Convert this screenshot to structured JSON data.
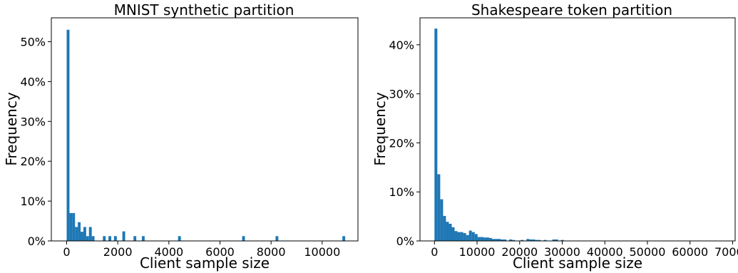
{
  "colors": {
    "bar": "#1f77b4",
    "axes": "#000000",
    "background": "#ffffff"
  },
  "chart_data": [
    {
      "type": "bar",
      "title": "MNIST synthetic partition",
      "xlabel": "Client sample size",
      "ylabel": "Frequency",
      "xlim": [
        -600,
        11400
      ],
      "ylim": [
        0,
        0.56
      ],
      "xticks": [
        0,
        2000,
        4000,
        6000,
        8000,
        10000
      ],
      "xtick_labels": [
        "0",
        "2000",
        "4000",
        "6000",
        "8000",
        "10000"
      ],
      "yticks": [
        0,
        0.1,
        0.2,
        0.3,
        0.4,
        0.5
      ],
      "ytick_labels": [
        "0%",
        "10%",
        "20%",
        "30%",
        "40%",
        "50%"
      ],
      "bin_width": 109,
      "bins": [
        {
          "x": 0,
          "y": 0.53
        },
        {
          "x": 109,
          "y": 0.07
        },
        {
          "x": 218,
          "y": 0.07
        },
        {
          "x": 327,
          "y": 0.035
        },
        {
          "x": 436,
          "y": 0.047
        },
        {
          "x": 545,
          "y": 0.023
        },
        {
          "x": 654,
          "y": 0.035
        },
        {
          "x": 763,
          "y": 0.012
        },
        {
          "x": 872,
          "y": 0.035
        },
        {
          "x": 981,
          "y": 0.012
        },
        {
          "x": 1417,
          "y": 0.012
        },
        {
          "x": 1635,
          "y": 0.012
        },
        {
          "x": 1853,
          "y": 0.012
        },
        {
          "x": 2180,
          "y": 0.024
        },
        {
          "x": 2616,
          "y": 0.012
        },
        {
          "x": 2943,
          "y": 0.012
        },
        {
          "x": 4360,
          "y": 0.012
        },
        {
          "x": 6867,
          "y": 0.012
        },
        {
          "x": 8175,
          "y": 0.012
        },
        {
          "x": 10791,
          "y": 0.012
        }
      ]
    },
    {
      "type": "bar",
      "title": "Shakespeare token partition",
      "xlabel": "Client sample size",
      "ylabel": "Frequency",
      "xlim": [
        -3400,
        70600
      ],
      "ylim": [
        0,
        0.455
      ],
      "xticks": [
        0,
        10000,
        20000,
        30000,
        40000,
        50000,
        60000,
        70000
      ],
      "xtick_labels": [
        "0",
        "10000",
        "20000",
        "30000",
        "40000",
        "50000",
        "60000",
        "70000"
      ],
      "yticks": [
        0,
        0.1,
        0.2,
        0.3,
        0.4
      ],
      "ytick_labels": [
        "0%",
        "10%",
        "20%",
        "30%",
        "40%"
      ],
      "bin_width": 675,
      "bins": [
        {
          "x": 0,
          "y": 0.433
        },
        {
          "x": 675,
          "y": 0.136
        },
        {
          "x": 1350,
          "y": 0.085
        },
        {
          "x": 2025,
          "y": 0.051
        },
        {
          "x": 2700,
          "y": 0.039
        },
        {
          "x": 3375,
          "y": 0.035
        },
        {
          "x": 4050,
          "y": 0.028
        },
        {
          "x": 4725,
          "y": 0.02
        },
        {
          "x": 5400,
          "y": 0.018
        },
        {
          "x": 6075,
          "y": 0.018
        },
        {
          "x": 6750,
          "y": 0.016
        },
        {
          "x": 7425,
          "y": 0.012
        },
        {
          "x": 8100,
          "y": 0.021
        },
        {
          "x": 8775,
          "y": 0.018
        },
        {
          "x": 9450,
          "y": 0.014
        },
        {
          "x": 10125,
          "y": 0.008
        },
        {
          "x": 10800,
          "y": 0.008
        },
        {
          "x": 11475,
          "y": 0.007
        },
        {
          "x": 12150,
          "y": 0.007
        },
        {
          "x": 12825,
          "y": 0.006
        },
        {
          "x": 13500,
          "y": 0.004
        },
        {
          "x": 14175,
          "y": 0.004
        },
        {
          "x": 14850,
          "y": 0.004
        },
        {
          "x": 15525,
          "y": 0.003
        },
        {
          "x": 16200,
          "y": 0.003
        },
        {
          "x": 17550,
          "y": 0.003
        },
        {
          "x": 18225,
          "y": 0.002
        },
        {
          "x": 20250,
          "y": 0.002
        },
        {
          "x": 21600,
          "y": 0.004
        },
        {
          "x": 22275,
          "y": 0.003
        },
        {
          "x": 22950,
          "y": 0.003
        },
        {
          "x": 23625,
          "y": 0.002
        },
        {
          "x": 24300,
          "y": 0.002
        },
        {
          "x": 25650,
          "y": 0.002
        },
        {
          "x": 27675,
          "y": 0.003
        },
        {
          "x": 28350,
          "y": 0.003
        },
        {
          "x": 29700,
          "y": 0.002
        }
      ]
    }
  ]
}
